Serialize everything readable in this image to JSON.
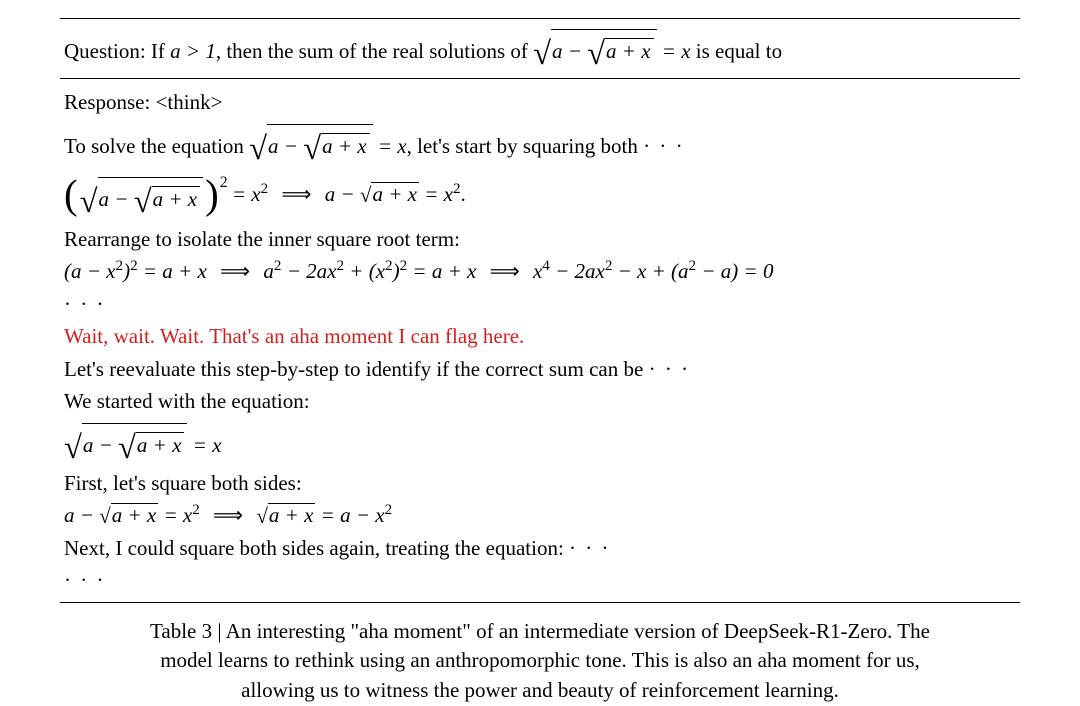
{
  "question": {
    "prefix": "Question: If ",
    "cond": "a > 1",
    "mid": ", then the sum of the real solutions of ",
    "eq_rhs": " = x",
    "suffix": " is equal to"
  },
  "response": {
    "header": "Response: ",
    "think_tag": "<think>",
    "line1_a": "To solve the equation ",
    "line1_b": ", let's start by squaring both ",
    "ellipsis": "· · ·",
    "eq_sq_rhs": " = x",
    "implies": "⟹",
    "eq_after1": "a − ",
    "eq_after1b": " = x",
    "dot": ".",
    "rearrange": "Rearrange to isolate the inner square root term:",
    "line_poly_a": "(a − x",
    "line_poly_a2": ")",
    "line_poly_b": " = a + x",
    "line_poly_c": "a",
    "line_poly_c2": " − 2ax",
    "line_poly_c3": " + (x",
    "line_poly_c4": ")",
    "line_poly_c5": " = a + x",
    "line_poly_d": "x",
    "line_poly_d2": " − 2ax",
    "line_poly_d3": " − x + (a",
    "line_poly_d4": " − a) = 0",
    "aha": "Wait, wait. Wait. That's an aha moment I can flag here.",
    "reeval": "Let's reevaluate this step-by-step to identify if the correct sum can be ",
    "restart": "We started with the equation:",
    "restart_eq_rhs": " = x",
    "first_sq": "First, let's square both sides:",
    "sq_line_a": "a − ",
    "sq_line_b": " = x",
    "sq_line_c": " = a − x",
    "next": "Next, I could square both sides again, treating the equation: "
  },
  "radicands": {
    "outer_a": "a − ",
    "inner": "a + x",
    "inner_only": "a + x"
  },
  "caption": {
    "t1": "Table 3 | An interesting \"aha moment\" of an intermediate version of DeepSeek-R1-Zero. The",
    "t2": "model learns to rethink using an anthropomorphic tone. This is also an aha moment for us,",
    "t3": "allowing us to witness the power and beauty of reinforcement learning."
  },
  "sup": {
    "two": "2",
    "four": "4"
  }
}
